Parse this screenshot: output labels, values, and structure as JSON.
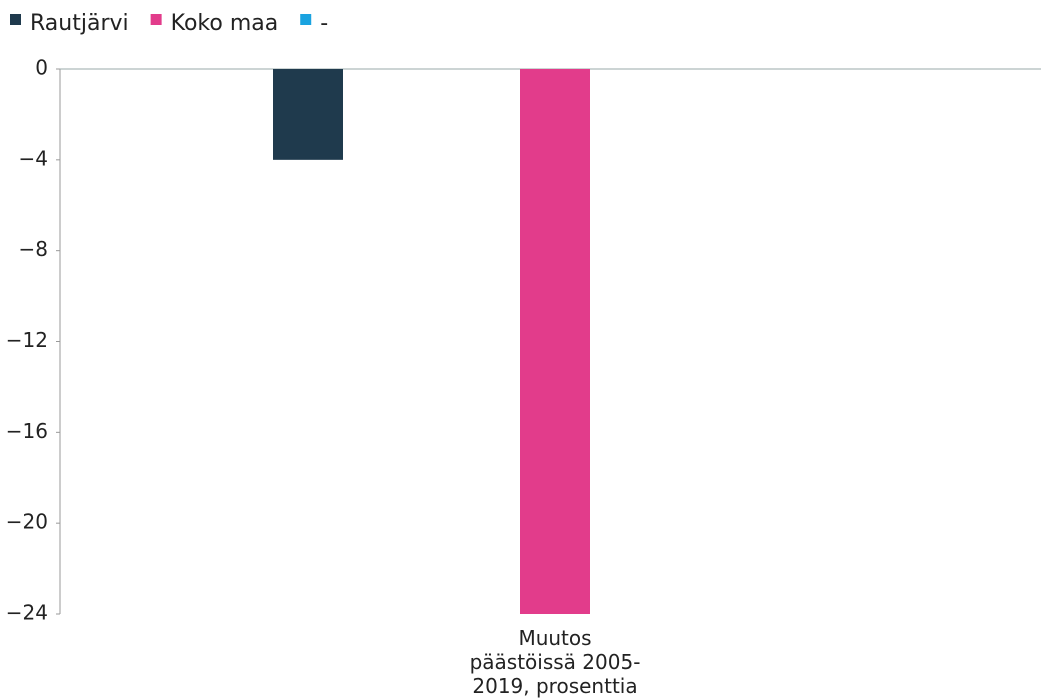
{
  "chart_data": {
    "type": "bar",
    "categories": [
      "Muutos päästöissä 2005-2019, prosenttia"
    ],
    "series": [
      {
        "name": "Rautjärvi",
        "color": "#1f3a4d",
        "values": [
          -4
        ]
      },
      {
        "name": "Koko maa",
        "color": "#e23c8b",
        "values": [
          -24
        ]
      },
      {
        "name": "-",
        "color": "#1aa3e0",
        "values": [
          null
        ]
      }
    ],
    "ylim": [
      -24,
      0
    ],
    "yticks": [
      {
        "value": 0,
        "label": "0"
      },
      {
        "value": -4,
        "label": "−4"
      },
      {
        "value": -8,
        "label": "−8"
      },
      {
        "value": -12,
        "label": "−12"
      },
      {
        "value": -16,
        "label": "−16"
      },
      {
        "value": -20,
        "label": "−20"
      },
      {
        "value": -24,
        "label": "−24"
      }
    ],
    "legend": "top-left"
  }
}
